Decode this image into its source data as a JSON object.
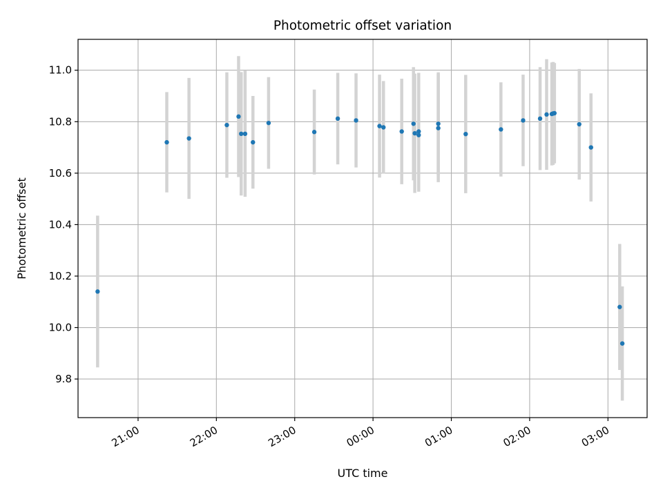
{
  "chart_data": {
    "type": "scatter",
    "title": "Photometric offset variation",
    "xlabel": "UTC time",
    "ylabel": "Photometric offset",
    "x_axis": {
      "type": "time",
      "range": [
        "20:14",
        "03:30"
      ],
      "day_rollover_after": "23:59",
      "ticks": [
        "21:00",
        "22:00",
        "23:00",
        "00:00",
        "01:00",
        "02:00",
        "03:00"
      ],
      "tick_label_rotation_deg": 30
    },
    "y_axis": {
      "range": [
        9.65,
        11.12
      ],
      "ticks": [
        9.8,
        10.0,
        10.2,
        10.4,
        10.6,
        10.8,
        11.0
      ],
      "tick_labels": [
        "9.8",
        "10.0",
        "10.2",
        "10.4",
        "10.6",
        "10.8",
        "11.0"
      ]
    },
    "grid": true,
    "marker_color": "#1f77b4",
    "errorbar_color": "#d3d3d3",
    "points": [
      {
        "time": "20:29",
        "y": 10.14,
        "err": 0.295
      },
      {
        "time": "21:22",
        "y": 10.72,
        "err": 0.195
      },
      {
        "time": "21:39",
        "y": 10.735,
        "err": 0.235
      },
      {
        "time": "22:08",
        "y": 10.787,
        "err": 0.205
      },
      {
        "time": "22:17",
        "y": 10.82,
        "err": 0.235
      },
      {
        "time": "22:19",
        "y": 10.753,
        "err": 0.24
      },
      {
        "time": "22:22",
        "y": 10.753,
        "err": 0.245
      },
      {
        "time": "22:28",
        "y": 10.72,
        "err": 0.18
      },
      {
        "time": "22:40",
        "y": 10.795,
        "err": 0.178
      },
      {
        "time": "23:15",
        "y": 10.76,
        "err": 0.165
      },
      {
        "time": "23:33",
        "y": 10.812,
        "err": 0.178
      },
      {
        "time": "23:47",
        "y": 10.805,
        "err": 0.183
      },
      {
        "time": "00:05",
        "y": 10.783,
        "err": 0.2
      },
      {
        "time": "00:08",
        "y": 10.778,
        "err": 0.18
      },
      {
        "time": "00:22",
        "y": 10.762,
        "err": 0.205
      },
      {
        "time": "00:31",
        "y": 10.792,
        "err": 0.22
      },
      {
        "time": "00:32",
        "y": 10.755,
        "err": 0.232
      },
      {
        "time": "00:35",
        "y": 10.762,
        "err": 0.228
      },
      {
        "time": "00:35",
        "y": 10.748,
        "err": 0.22
      },
      {
        "time": "00:50",
        "y": 10.792,
        "err": 0.2
      },
      {
        "time": "00:50",
        "y": 10.775,
        "err": 0.21
      },
      {
        "time": "01:11",
        "y": 10.752,
        "err": 0.23
      },
      {
        "time": "01:38",
        "y": 10.77,
        "err": 0.183
      },
      {
        "time": "01:55",
        "y": 10.805,
        "err": 0.178
      },
      {
        "time": "02:08",
        "y": 10.812,
        "err": 0.2
      },
      {
        "time": "02:13",
        "y": 10.828,
        "err": 0.215
      },
      {
        "time": "02:17",
        "y": 10.83,
        "err": 0.2
      },
      {
        "time": "02:18",
        "y": 10.832,
        "err": 0.2
      },
      {
        "time": "02:19",
        "y": 10.833,
        "err": 0.195
      },
      {
        "time": "02:38",
        "y": 10.79,
        "err": 0.215
      },
      {
        "time": "02:47",
        "y": 10.7,
        "err": 0.21
      },
      {
        "time": "03:09",
        "y": 10.08,
        "err": 0.245
      },
      {
        "time": "03:11",
        "y": 9.938,
        "err": 0.222
      }
    ]
  }
}
